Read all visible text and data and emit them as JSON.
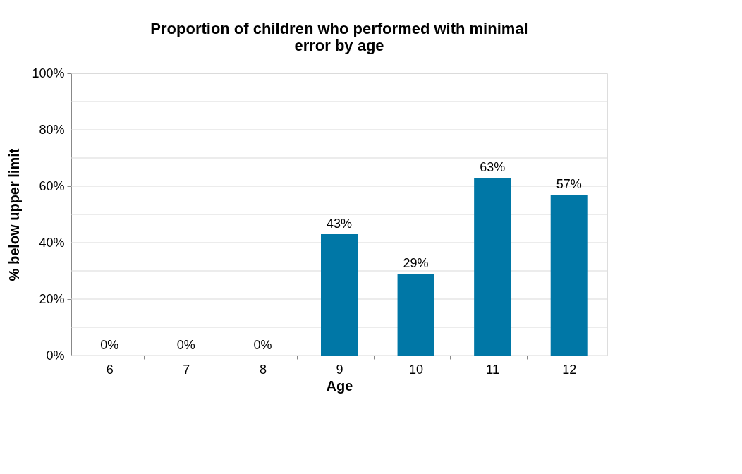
{
  "chart_data": {
    "type": "bar",
    "title": "Proportion of children who performed with minimal error by age",
    "xlabel": "Age",
    "ylabel": "% below upper limit",
    "categories": [
      "6",
      "7",
      "8",
      "9",
      "10",
      "11",
      "12"
    ],
    "values": [
      0,
      0,
      0,
      43,
      29,
      63,
      57
    ],
    "color": "#0077a6",
    "value_labels": [
      "0%",
      "0%",
      "0%",
      "43%",
      "29%",
      "63%",
      "57%"
    ],
    "ylim": [
      0,
      100
    ],
    "yticks": [
      {
        "value": 0,
        "label": "0%"
      },
      {
        "value": 10,
        "label": null
      },
      {
        "value": 20,
        "label": "20%"
      },
      {
        "value": 30,
        "label": null
      },
      {
        "value": 40,
        "label": "40%"
      },
      {
        "value": 50,
        "label": null
      },
      {
        "value": 60,
        "label": "60%"
      },
      {
        "value": 70,
        "label": null
      },
      {
        "value": 80,
        "label": "80%"
      },
      {
        "value": 90,
        "label": null
      },
      {
        "value": 100,
        "label": "100%"
      }
    ],
    "grid": "y"
  }
}
